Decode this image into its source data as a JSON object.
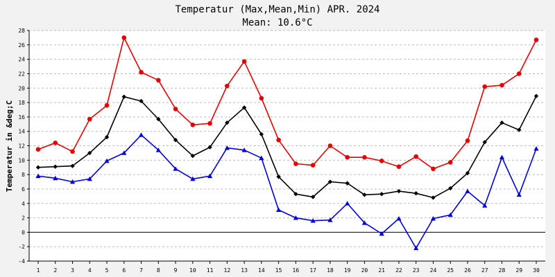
{
  "chart_data": {
    "type": "line",
    "title": "Temperatur (Max,Mean,Min) APR. 2024",
    "subtitle": "Mean: 10.6°C",
    "ylabel": "Temperatur in &deg;C",
    "xlabel": "",
    "ylim": [
      -4,
      28
    ],
    "y_ticks": [
      "-4",
      "-2",
      "0",
      "2",
      "4",
      "6",
      "8",
      "10",
      "12",
      "14",
      "16",
      "18",
      "20",
      "22",
      "24",
      "26",
      "28"
    ],
    "categories": [
      "1",
      "2",
      "3",
      "4",
      "5",
      "6",
      "7",
      "8",
      "9",
      "10",
      "11",
      "12",
      "13",
      "14",
      "15",
      "16",
      "17",
      "18",
      "19",
      "20",
      "21",
      "22",
      "23",
      "24",
      "25",
      "26",
      "27",
      "28",
      "29",
      "30"
    ],
    "grid": true,
    "series": [
      {
        "key": "max",
        "color": "#e60000",
        "marker": "circle",
        "values": [
          11.5,
          12.4,
          11.2,
          15.7,
          17.6,
          27.0,
          22.2,
          21.1,
          17.1,
          14.9,
          15.1,
          20.3,
          23.7,
          18.6,
          12.8,
          9.5,
          9.3,
          12.0,
          10.4,
          10.4,
          9.9,
          9.1,
          10.5,
          8.8,
          9.7,
          12.7,
          20.2,
          20.4,
          22.0,
          26.7
        ]
      },
      {
        "key": "mean",
        "color": "#000000",
        "marker": "diamond",
        "values": [
          9.0,
          9.1,
          9.2,
          11.0,
          13.2,
          18.8,
          18.2,
          15.7,
          12.8,
          10.6,
          11.8,
          15.2,
          17.3,
          13.6,
          7.7,
          5.3,
          4.9,
          7.0,
          6.8,
          5.2,
          5.3,
          5.7,
          5.4,
          4.8,
          6.1,
          8.2,
          12.5,
          15.2,
          14.2,
          18.9
        ]
      },
      {
        "key": "min",
        "color": "#0000dd",
        "marker": "triangle",
        "values": [
          7.8,
          7.5,
          7.0,
          7.4,
          9.9,
          11.0,
          13.5,
          11.4,
          8.8,
          7.4,
          7.8,
          11.7,
          11.4,
          10.3,
          3.1,
          2.0,
          1.6,
          1.7,
          4.0,
          1.3,
          -0.2,
          1.9,
          -2.2,
          1.9,
          2.4,
          5.7,
          3.7,
          10.4,
          5.2,
          11.6
        ]
      }
    ]
  }
}
